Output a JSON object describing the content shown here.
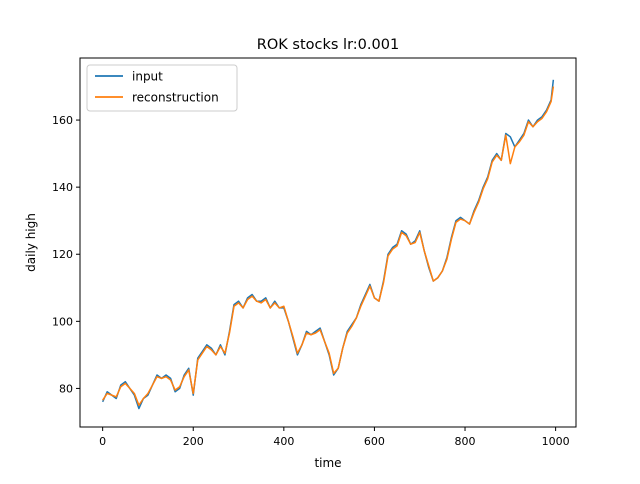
{
  "chart_data": {
    "type": "line",
    "title": "ROK stocks lr:0.001",
    "xlabel": "time",
    "ylabel": "daily high",
    "xlim": [
      -50,
      1045
    ],
    "ylim": [
      68.5,
      178.5
    ],
    "xticks": [
      0,
      200,
      400,
      600,
      800,
      1000
    ],
    "yticks": [
      80,
      100,
      120,
      140,
      160
    ],
    "grid": false,
    "legend_position": "top-left",
    "series": [
      {
        "name": "input",
        "color": "#1f77b4",
        "x": [
          0,
          10,
          20,
          30,
          40,
          50,
          60,
          70,
          80,
          90,
          100,
          110,
          120,
          130,
          140,
          150,
          160,
          170,
          180,
          190,
          200,
          210,
          220,
          230,
          240,
          250,
          260,
          270,
          280,
          290,
          300,
          310,
          320,
          330,
          340,
          350,
          360,
          370,
          380,
          390,
          400,
          410,
          420,
          430,
          440,
          450,
          460,
          470,
          480,
          490,
          500,
          510,
          520,
          530,
          540,
          550,
          560,
          570,
          580,
          590,
          600,
          610,
          620,
          630,
          640,
          650,
          660,
          670,
          680,
          690,
          700,
          710,
          720,
          730,
          740,
          750,
          760,
          770,
          780,
          790,
          800,
          810,
          820,
          830,
          840,
          850,
          860,
          870,
          880,
          890,
          900,
          910,
          920,
          930,
          940,
          950,
          960,
          970,
          980,
          990,
          995
        ],
        "values": [
          76,
          79,
          78,
          77,
          81,
          82,
          80,
          78,
          74,
          77,
          78,
          81,
          84,
          83,
          84,
          83,
          79,
          80,
          84,
          86,
          78,
          89,
          91,
          93,
          92,
          90,
          93,
          90,
          97,
          105,
          106,
          104,
          107,
          108,
          106,
          106,
          107,
          104,
          106,
          104,
          104,
          100,
          95,
          90,
          93,
          97,
          96,
          97,
          98,
          94,
          90,
          84,
          86,
          92,
          97,
          99,
          101,
          105,
          108,
          111,
          107,
          106,
          112,
          120,
          122,
          123,
          127,
          126,
          123,
          124,
          127,
          121,
          116,
          112,
          113,
          115,
          119,
          125,
          130,
          131,
          130,
          129,
          133,
          136,
          140,
          143,
          148,
          150,
          148,
          156,
          155,
          152,
          154,
          156,
          160,
          158,
          160,
          161,
          163,
          166,
          172
        ]
      },
      {
        "name": "reconstruction",
        "color": "#ff7f0e",
        "x": [
          0,
          10,
          20,
          30,
          40,
          50,
          60,
          70,
          80,
          90,
          100,
          110,
          120,
          130,
          140,
          150,
          160,
          170,
          180,
          190,
          200,
          210,
          220,
          230,
          240,
          250,
          260,
          270,
          280,
          290,
          300,
          310,
          320,
          330,
          340,
          350,
          360,
          370,
          380,
          390,
          400,
          410,
          420,
          430,
          440,
          450,
          460,
          470,
          480,
          490,
          500,
          510,
          520,
          530,
          540,
          550,
          560,
          570,
          580,
          590,
          600,
          610,
          620,
          630,
          640,
          650,
          660,
          670,
          680,
          690,
          700,
          710,
          720,
          730,
          740,
          750,
          760,
          770,
          780,
          790,
          800,
          810,
          820,
          830,
          840,
          850,
          860,
          870,
          880,
          890,
          900,
          910,
          920,
          930,
          940,
          950,
          960,
          970,
          980,
          990,
          995
        ],
        "values": [
          76.5,
          78.5,
          78,
          77.5,
          80.5,
          81.5,
          80,
          78.5,
          75,
          77,
          78.5,
          81,
          83.5,
          83,
          83.5,
          82.5,
          79.5,
          80.5,
          83.5,
          85.5,
          78.5,
          88.5,
          90.5,
          92.5,
          91.5,
          90,
          92.5,
          90.5,
          96.5,
          104.5,
          105.5,
          104,
          106.5,
          107.5,
          106,
          105.5,
          106.5,
          104,
          105.5,
          104,
          104.5,
          100,
          95.5,
          90.5,
          93,
          96.5,
          96,
          96.5,
          97.5,
          94,
          90.5,
          84.5,
          86,
          92,
          96.5,
          98.5,
          101,
          104.5,
          107.5,
          110.5,
          107,
          106,
          111.5,
          119.5,
          121.5,
          122.5,
          126.5,
          125.5,
          123,
          123.5,
          126.5,
          121,
          116.5,
          112,
          113,
          115,
          118.5,
          124.5,
          129.5,
          130.5,
          130,
          129,
          132.5,
          135.5,
          139.5,
          142.5,
          147.5,
          149.5,
          148,
          155.5,
          147,
          152,
          153.5,
          155.5,
          159.5,
          158,
          159.5,
          160.5,
          162.5,
          165.5,
          170
        ]
      }
    ]
  }
}
